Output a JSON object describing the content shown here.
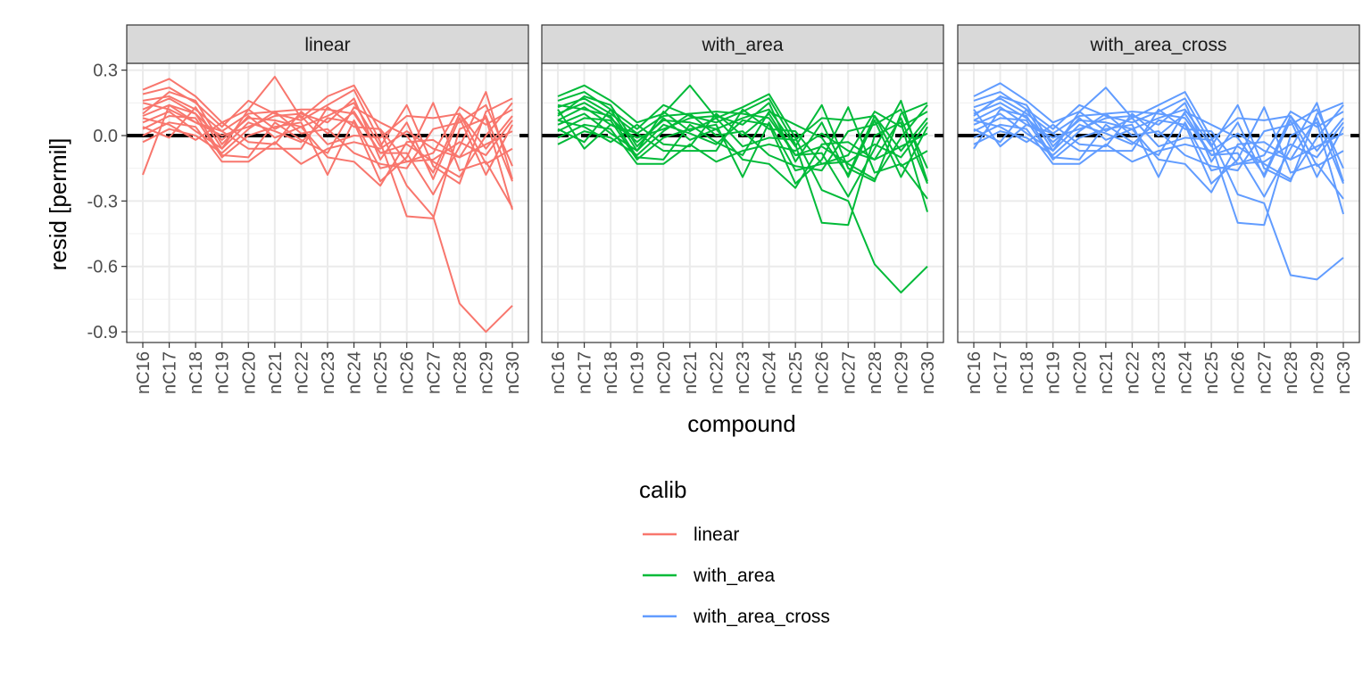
{
  "chart_data": {
    "type": "line",
    "facet_variable": "calib",
    "facets": [
      "linear",
      "with_area",
      "with_area_cross"
    ],
    "categories": [
      "nC16",
      "nC17",
      "nC18",
      "nC19",
      "nC20",
      "nC21",
      "nC22",
      "nC23",
      "nC24",
      "nC25",
      "nC26",
      "nC27",
      "nC28",
      "nC29",
      "nC30"
    ],
    "xlabel": "compound",
    "ylabel": "resid [permil]",
    "ylim": [
      -0.95,
      0.32
    ],
    "yticks": [
      0.3,
      0.0,
      -0.3,
      -0.6,
      -0.9
    ],
    "ytick_labels": [
      "0.3",
      "0.0",
      "-0.3",
      "-0.6",
      "-0.9"
    ],
    "reference_line": {
      "y": 0,
      "style": "dashed",
      "color": "#000000"
    },
    "grid": true,
    "legend": {
      "title": "calib",
      "placement": "bottom",
      "entries": [
        "linear",
        "with_area",
        "with_area_cross"
      ]
    },
    "colors": {
      "linear": "#F8766D",
      "with_area": "#00BA38",
      "with_area_cross": "#619CFF"
    },
    "series": [
      {
        "facet": "linear",
        "values": [
          0.21,
          0.26,
          0.18,
          0.06,
          0.12,
          0.27,
          0.08,
          0.18,
          0.23,
          0.02,
          -0.23,
          -0.37,
          -0.77,
          -0.9,
          -0.78
        ]
      },
      {
        "facet": "linear",
        "values": [
          0.19,
          0.22,
          0.15,
          0.04,
          0.16,
          0.1,
          0.07,
          0.14,
          0.21,
          -0.03,
          -0.37,
          -0.38,
          0.03,
          0.08,
          -0.34
        ]
      },
      {
        "facet": "linear",
        "values": [
          0.16,
          0.18,
          0.12,
          0.02,
          0.1,
          0.11,
          0.12,
          0.12,
          0.1,
          -0.08,
          -0.08,
          -0.27,
          -0.05,
          0.2,
          -0.2
        ]
      },
      {
        "facet": "linear",
        "values": [
          0.12,
          0.17,
          0.1,
          -0.02,
          0.08,
          0.07,
          0.04,
          0.09,
          0.15,
          -0.05,
          0.14,
          -0.14,
          -0.22,
          0.11,
          0.17
        ]
      },
      {
        "facet": "linear",
        "values": [
          0.09,
          0.14,
          0.06,
          0.0,
          0.04,
          0.09,
          0.1,
          0.06,
          0.17,
          -0.11,
          0.06,
          -0.2,
          0.08,
          -0.18,
          0.05
        ]
      },
      {
        "facet": "linear",
        "values": [
          0.06,
          0.11,
          0.02,
          -0.06,
          0.06,
          0.02,
          -0.03,
          0.08,
          0.06,
          -0.21,
          -0.1,
          0.15,
          -0.16,
          -0.12,
          -0.33
        ]
      },
      {
        "facet": "linear",
        "values": [
          0.03,
          0.09,
          0.08,
          -0.1,
          0.0,
          0.04,
          0.06,
          -0.18,
          0.07,
          -0.15,
          -0.12,
          -0.08,
          0.13,
          0.05,
          0.12
        ]
      },
      {
        "facet": "linear",
        "values": [
          0.0,
          0.06,
          0.04,
          -0.12,
          -0.12,
          -0.03,
          -0.13,
          -0.06,
          -0.03,
          -0.06,
          0.02,
          -0.06,
          -0.1,
          -0.04,
          0.02
        ]
      },
      {
        "facet": "linear",
        "values": [
          -0.03,
          0.03,
          0.0,
          -0.08,
          0.03,
          0.11,
          0.01,
          0.03,
          -0.08,
          -0.13,
          -0.15,
          0.03,
          0.06,
          0.14,
          -0.14
        ]
      },
      {
        "facet": "linear",
        "values": [
          -0.18,
          0.14,
          0.1,
          -0.09,
          -0.1,
          0.06,
          -0.02,
          -0.08,
          0.13,
          0.06,
          0.0,
          -0.17,
          0.1,
          -0.06,
          0.09
        ]
      },
      {
        "facet": "linear",
        "values": [
          0.1,
          0.2,
          0.16,
          -0.04,
          0.09,
          -0.01,
          0.04,
          -0.1,
          -0.12,
          -0.23,
          -0.03,
          -0.02,
          -0.1,
          0.09,
          -0.21
        ]
      },
      {
        "facet": "linear",
        "values": [
          0.15,
          0.12,
          0.06,
          0.02,
          -0.06,
          -0.06,
          -0.06,
          0.13,
          0.04,
          0.03,
          -0.12,
          -0.11,
          -0.03,
          -0.09,
          0.07
        ]
      },
      {
        "facet": "linear",
        "values": [
          0.04,
          -0.01,
          0.13,
          -0.06,
          0.12,
          0.03,
          0.09,
          -0.04,
          0.0,
          -0.01,
          0.09,
          0.08,
          0.1,
          -0.13,
          -0.06
        ]
      },
      {
        "facet": "linear",
        "values": [
          0.08,
          0.05,
          -0.02,
          0.06,
          -0.03,
          -0.04,
          0.11,
          0.01,
          0.11,
          -0.08,
          -0.04,
          -0.12,
          -0.19,
          0.0,
          0.15
        ]
      },
      {
        "facet": "with_area",
        "values": [
          0.18,
          0.23,
          0.16,
          0.06,
          0.1,
          0.23,
          0.08,
          0.13,
          0.19,
          -0.01,
          -0.25,
          -0.3,
          -0.59,
          -0.72,
          -0.6
        ]
      },
      {
        "facet": "with_area",
        "values": [
          0.16,
          0.2,
          0.12,
          0.03,
          0.14,
          0.09,
          0.06,
          0.11,
          0.17,
          -0.04,
          -0.4,
          -0.41,
          0.0,
          0.06,
          -0.35
        ]
      },
      {
        "facet": "with_area",
        "values": [
          0.13,
          0.17,
          0.1,
          0.01,
          0.09,
          0.1,
          0.11,
          0.1,
          0.08,
          -0.09,
          -0.08,
          -0.28,
          -0.06,
          0.16,
          -0.21
        ]
      },
      {
        "facet": "with_area",
        "values": [
          0.1,
          0.15,
          0.08,
          -0.03,
          0.07,
          0.06,
          0.03,
          0.08,
          0.12,
          -0.05,
          0.14,
          -0.15,
          -0.21,
          0.1,
          0.15
        ]
      },
      {
        "facet": "with_area",
        "values": [
          0.07,
          0.13,
          0.05,
          -0.01,
          0.03,
          0.08,
          0.09,
          0.05,
          0.15,
          -0.12,
          0.06,
          -0.19,
          0.07,
          -0.19,
          0.04
        ]
      },
      {
        "facet": "with_area",
        "values": [
          0.05,
          0.1,
          0.01,
          -0.07,
          0.05,
          0.01,
          -0.04,
          0.07,
          0.05,
          -0.22,
          -0.11,
          0.13,
          -0.17,
          -0.13,
          -0.29
        ]
      },
      {
        "facet": "with_area",
        "values": [
          0.02,
          0.08,
          0.07,
          -0.11,
          -0.01,
          0.03,
          0.05,
          -0.19,
          0.06,
          -0.16,
          -0.13,
          -0.09,
          0.11,
          0.04,
          0.11
        ]
      },
      {
        "facet": "with_area",
        "values": [
          -0.01,
          0.05,
          0.03,
          -0.13,
          -0.13,
          -0.04,
          -0.12,
          -0.07,
          -0.04,
          -0.07,
          0.01,
          -0.07,
          -0.11,
          -0.05,
          0.01
        ]
      },
      {
        "facet": "with_area",
        "values": [
          -0.04,
          0.02,
          -0.01,
          -0.09,
          0.02,
          0.1,
          0.0,
          0.02,
          -0.09,
          -0.14,
          -0.16,
          0.02,
          0.05,
          0.12,
          -0.15
        ]
      },
      {
        "facet": "with_area",
        "values": [
          0.14,
          0.12,
          0.09,
          -0.1,
          -0.11,
          0.05,
          -0.03,
          -0.09,
          0.11,
          0.05,
          -0.01,
          -0.18,
          0.09,
          -0.07,
          0.08
        ]
      },
      {
        "facet": "with_area",
        "values": [
          0.09,
          0.18,
          0.14,
          -0.05,
          0.08,
          -0.02,
          0.03,
          -0.11,
          -0.13,
          -0.24,
          -0.04,
          -0.03,
          -0.11,
          0.08,
          -0.22
        ]
      },
      {
        "facet": "with_area",
        "values": [
          0.12,
          -0.06,
          0.05,
          0.01,
          -0.07,
          -0.07,
          -0.07,
          0.12,
          0.03,
          0.02,
          -0.13,
          -0.12,
          -0.04,
          -0.1,
          0.06
        ]
      },
      {
        "facet": "with_area",
        "values": [
          0.03,
          -0.03,
          0.12,
          -0.07,
          0.11,
          0.02,
          0.08,
          -0.05,
          -0.01,
          -0.02,
          0.08,
          0.07,
          0.09,
          -0.14,
          -0.07
        ]
      },
      {
        "facet": "with_area",
        "values": [
          0.07,
          0.04,
          -0.03,
          0.05,
          -0.04,
          -0.05,
          0.1,
          0.0,
          0.1,
          -0.09,
          -0.05,
          -0.13,
          -0.2,
          -0.01,
          0.14
        ]
      },
      {
        "facet": "with_area_cross",
        "values": [
          0.18,
          0.24,
          0.16,
          0.06,
          0.11,
          0.22,
          0.08,
          0.14,
          0.2,
          -0.01,
          -0.27,
          -0.31,
          -0.64,
          -0.66,
          -0.56
        ]
      },
      {
        "facet": "with_area_cross",
        "values": [
          0.16,
          0.2,
          0.12,
          0.03,
          0.14,
          0.09,
          0.06,
          0.11,
          0.17,
          -0.04,
          -0.4,
          -0.41,
          0.0,
          0.06,
          -0.36
        ]
      },
      {
        "facet": "with_area_cross",
        "values": [
          0.13,
          0.17,
          0.1,
          0.01,
          0.09,
          0.1,
          0.11,
          0.1,
          0.08,
          -0.09,
          -0.08,
          -0.28,
          -0.06,
          0.15,
          -0.21
        ]
      },
      {
        "facet": "with_area_cross",
        "values": [
          0.1,
          0.15,
          0.08,
          -0.03,
          0.07,
          0.06,
          0.03,
          0.08,
          0.12,
          -0.05,
          0.14,
          -0.15,
          -0.21,
          0.1,
          0.15
        ]
      },
      {
        "facet": "with_area_cross",
        "values": [
          0.07,
          0.13,
          0.05,
          -0.01,
          0.03,
          0.08,
          0.09,
          0.05,
          0.15,
          -0.12,
          0.06,
          -0.19,
          0.07,
          -0.19,
          0.04
        ]
      },
      {
        "facet": "with_area_cross",
        "values": [
          0.05,
          0.1,
          0.01,
          -0.07,
          0.05,
          0.01,
          -0.04,
          0.07,
          0.05,
          -0.22,
          -0.11,
          0.13,
          -0.17,
          -0.13,
          -0.29
        ]
      },
      {
        "facet": "with_area_cross",
        "values": [
          0.02,
          0.08,
          0.07,
          -0.11,
          -0.01,
          0.03,
          0.05,
          -0.19,
          0.06,
          -0.16,
          -0.13,
          -0.09,
          0.11,
          0.04,
          0.11
        ]
      },
      {
        "facet": "with_area_cross",
        "values": [
          -0.01,
          0.05,
          0.03,
          -0.13,
          -0.13,
          -0.04,
          -0.12,
          -0.07,
          -0.04,
          -0.07,
          0.01,
          -0.07,
          -0.11,
          -0.05,
          0.01
        ]
      },
      {
        "facet": "with_area_cross",
        "values": [
          -0.04,
          0.02,
          -0.01,
          -0.09,
          0.02,
          0.1,
          0.0,
          0.02,
          -0.09,
          -0.14,
          -0.16,
          0.02,
          0.05,
          0.12,
          -0.15
        ]
      },
      {
        "facet": "with_area_cross",
        "values": [
          -0.06,
          0.12,
          0.09,
          -0.1,
          -0.11,
          0.05,
          -0.03,
          -0.09,
          0.11,
          0.05,
          -0.01,
          -0.18,
          0.09,
          -0.07,
          0.08
        ]
      },
      {
        "facet": "with_area_cross",
        "values": [
          0.09,
          0.18,
          0.14,
          -0.05,
          0.08,
          -0.02,
          0.03,
          -0.11,
          -0.13,
          -0.26,
          -0.04,
          -0.03,
          -0.11,
          0.08,
          -0.22
        ]
      },
      {
        "facet": "with_area_cross",
        "values": [
          0.12,
          -0.05,
          0.05,
          0.01,
          -0.07,
          -0.07,
          -0.07,
          0.12,
          0.03,
          0.02,
          -0.13,
          -0.12,
          -0.04,
          -0.1,
          0.06
        ]
      },
      {
        "facet": "with_area_cross",
        "values": [
          0.03,
          -0.03,
          0.12,
          -0.07,
          0.11,
          0.02,
          0.08,
          -0.05,
          -0.01,
          -0.02,
          0.08,
          0.07,
          0.09,
          -0.14,
          -0.07
        ]
      },
      {
        "facet": "with_area_cross",
        "values": [
          0.07,
          0.04,
          -0.03,
          0.05,
          -0.04,
          -0.05,
          0.1,
          0.0,
          0.1,
          -0.09,
          -0.05,
          -0.13,
          -0.2,
          -0.01,
          0.14
        ]
      }
    ]
  }
}
